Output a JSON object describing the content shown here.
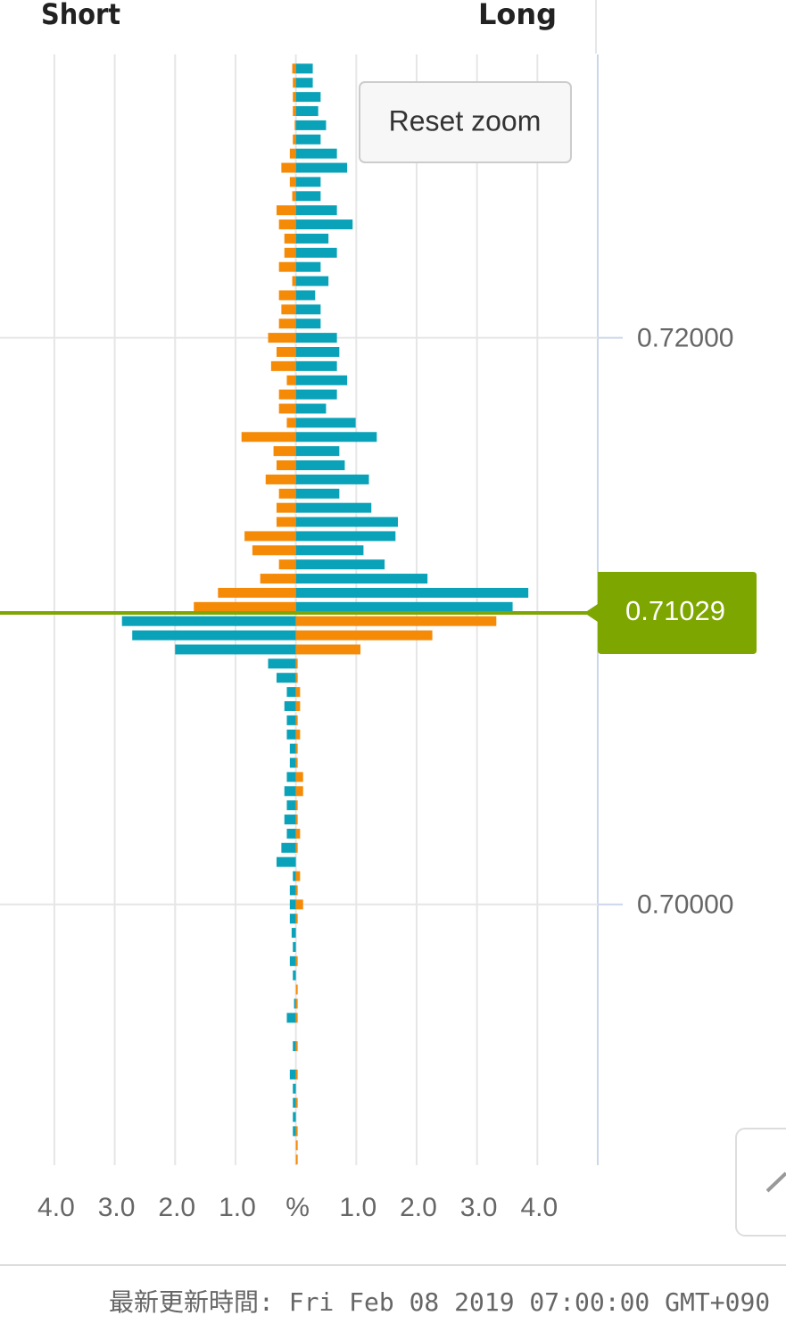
{
  "chart_data": {
    "type": "bar",
    "orientation": "horizontal",
    "left_label": "Short",
    "right_label": "Long",
    "button": "Reset zoom",
    "footer": "最新更新時間: Fri Feb 08 2019 07:00:00 GMT+090",
    "current_price": 0.71029,
    "current_price_color": "#7ea600",
    "y": [
      0.7295,
      0.729,
      0.7285,
      0.728,
      0.7275,
      0.727,
      0.7265,
      0.726,
      0.7255,
      0.725,
      0.7245,
      0.724,
      0.7235,
      0.723,
      0.7225,
      0.722,
      0.7215,
      0.721,
      0.7205,
      0.72,
      0.7195,
      0.719,
      0.7185,
      0.718,
      0.7175,
      0.717,
      0.7165,
      0.716,
      0.7155,
      0.715,
      0.7145,
      0.714,
      0.7135,
      0.713,
      0.7125,
      0.712,
      0.7115,
      0.711,
      0.7105,
      0.71,
      0.7095,
      0.709,
      0.7085,
      0.708,
      0.7075,
      0.707,
      0.7065,
      0.706,
      0.7055,
      0.705,
      0.7045,
      0.704,
      0.7035,
      0.703,
      0.7025,
      0.702,
      0.7015,
      0.701,
      0.7005,
      0.7,
      0.6995,
      0.699,
      0.6985,
      0.698,
      0.6975,
      0.697,
      0.6965,
      0.696,
      0.6955,
      0.695,
      0.6945,
      0.694,
      0.6935,
      0.693,
      0.6925,
      0.692,
      0.6915,
      0.691
    ],
    "series": [
      {
        "color": "#0aa2b8",
        "values": [
          0.28,
          0.28,
          0.41,
          0.37,
          0.5,
          0.41,
          0.68,
          0.85,
          0.41,
          0.41,
          0.68,
          0.94,
          0.54,
          0.68,
          0.41,
          0.54,
          0.32,
          0.41,
          0.41,
          0.68,
          0.72,
          0.68,
          0.85,
          0.68,
          0.5,
          0.99,
          1.34,
          0.72,
          0.81,
          1.21,
          0.72,
          1.25,
          1.69,
          1.65,
          1.12,
          1.47,
          2.18,
          3.85,
          3.59,
          -2.88,
          -2.71,
          -2.0,
          -0.46,
          -0.32,
          -0.15,
          -0.19,
          -0.15,
          -0.15,
          -0.1,
          -0.1,
          -0.15,
          -0.19,
          -0.15,
          -0.19,
          -0.15,
          -0.24,
          -0.32,
          -0.05,
          -0.1,
          -0.1,
          -0.1,
          -0.07,
          -0.05,
          -0.1,
          -0.05,
          0,
          -0.03,
          -0.15,
          0,
          -0.05,
          0,
          -0.1,
          -0.05,
          -0.05,
          -0.05,
          -0.05,
          0,
          0
        ]
      },
      {
        "color": "#f58a07",
        "values": [
          -0.06,
          -0.05,
          -0.05,
          -0.05,
          -0.02,
          -0.05,
          -0.1,
          -0.24,
          -0.1,
          -0.06,
          -0.32,
          -0.28,
          -0.19,
          -0.19,
          -0.28,
          -0.06,
          -0.28,
          -0.24,
          -0.28,
          -0.46,
          -0.32,
          -0.41,
          -0.15,
          -0.28,
          -0.28,
          -0.15,
          -0.9,
          -0.37,
          -0.32,
          -0.5,
          -0.28,
          -0.32,
          -0.32,
          -0.85,
          -0.72,
          -0.28,
          -0.59,
          -1.29,
          -1.69,
          3.32,
          2.26,
          1.07,
          0.03,
          0.03,
          0.07,
          0.07,
          0.03,
          0.07,
          0.03,
          0.03,
          0.12,
          0.12,
          0.03,
          0.03,
          0.07,
          0.03,
          0,
          0.07,
          0.03,
          0.12,
          0.03,
          0,
          0,
          0.03,
          0,
          0.03,
          0.03,
          0.03,
          0,
          0.03,
          0,
          0.03,
          0,
          0.03,
          0,
          0.03,
          0.03,
          0.03
        ]
      }
    ],
    "xlim": [
      -4.9,
      5
    ],
    "xticks": [
      {
        "value": -4,
        "label": "4.0"
      },
      {
        "value": -3,
        "label": "3.0"
      },
      {
        "value": -2,
        "label": "2.0"
      },
      {
        "value": -1,
        "label": "1.0"
      },
      {
        "value": 0,
        "label": "%"
      },
      {
        "value": 1,
        "label": "1.0"
      },
      {
        "value": 2,
        "label": "2.0"
      },
      {
        "value": 3,
        "label": "3.0"
      },
      {
        "value": 4,
        "label": "4.0"
      }
    ],
    "ylim": [
      0.6908,
      0.73
    ],
    "yticks": [
      {
        "value": 0.72,
        "label": "0.72000"
      },
      {
        "value": 0.7,
        "label": "0.70000"
      }
    ],
    "grid": true
  }
}
